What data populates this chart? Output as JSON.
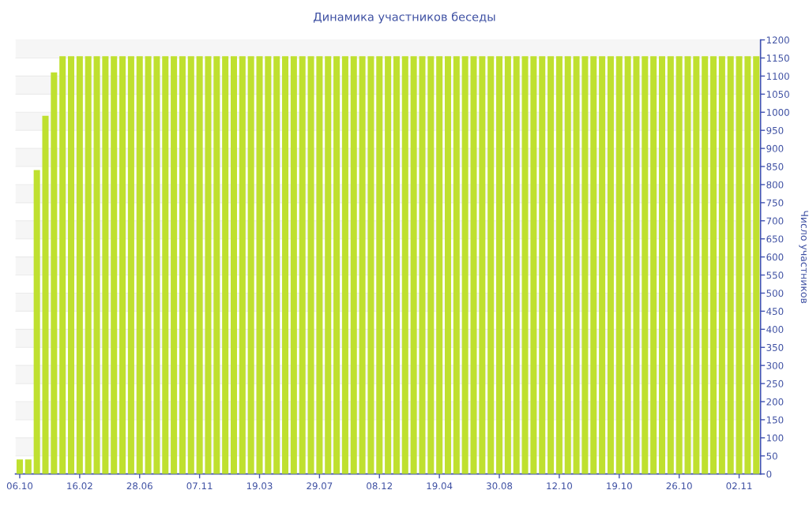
{
  "chart_data": {
    "type": "bar",
    "title": "Динамика участников беседы",
    "ylabel": "Число участников",
    "categories": [
      "06.10",
      null,
      null,
      null,
      null,
      null,
      null,
      "16.02",
      null,
      null,
      null,
      null,
      null,
      null,
      "28.06",
      null,
      null,
      null,
      null,
      null,
      null,
      "07.11",
      null,
      null,
      null,
      null,
      null,
      null,
      "19.03",
      null,
      null,
      null,
      null,
      null,
      null,
      "29.07",
      null,
      null,
      null,
      null,
      null,
      null,
      "08.12",
      null,
      null,
      null,
      null,
      null,
      null,
      "19.04",
      null,
      null,
      null,
      null,
      null,
      null,
      "30.08",
      null,
      null,
      null,
      null,
      null,
      null,
      "12.10",
      null,
      null,
      null,
      null,
      null,
      null,
      "19.10",
      null,
      null,
      null,
      null,
      null,
      null,
      "26.10",
      null,
      null,
      null,
      null,
      null,
      null,
      "02.11",
      null,
      null
    ],
    "values": [
      40,
      40,
      840,
      990,
      1110,
      1155,
      1155,
      1155,
      1155,
      1155,
      1155,
      1155,
      1155,
      1155,
      1155,
      1155,
      1155,
      1155,
      1155,
      1155,
      1155,
      1155,
      1155,
      1155,
      1155,
      1155,
      1155,
      1155,
      1155,
      1155,
      1155,
      1155,
      1155,
      1155,
      1155,
      1155,
      1155,
      1155,
      1155,
      1155,
      1155,
      1155,
      1155,
      1155,
      1155,
      1155,
      1155,
      1155,
      1155,
      1155,
      1155,
      1155,
      1155,
      1155,
      1155,
      1155,
      1155,
      1155,
      1155,
      1155,
      1155,
      1155,
      1155,
      1155,
      1155,
      1155,
      1155,
      1155,
      1155,
      1155,
      1155,
      1155,
      1155,
      1155,
      1155,
      1155,
      1155,
      1155,
      1155,
      1155,
      1155,
      1155,
      1155,
      1155,
      1155,
      1155,
      1155
    ],
    "color": "#bfe02f",
    "ylim": [
      0,
      1200
    ],
    "yticks": [
      0,
      50,
      100,
      150,
      200,
      250,
      300,
      350,
      400,
      450,
      500,
      550,
      600,
      650,
      700,
      750,
      800,
      850,
      900,
      950,
      1000,
      1050,
      1100,
      1150,
      1200
    ],
    "grid": "y"
  }
}
